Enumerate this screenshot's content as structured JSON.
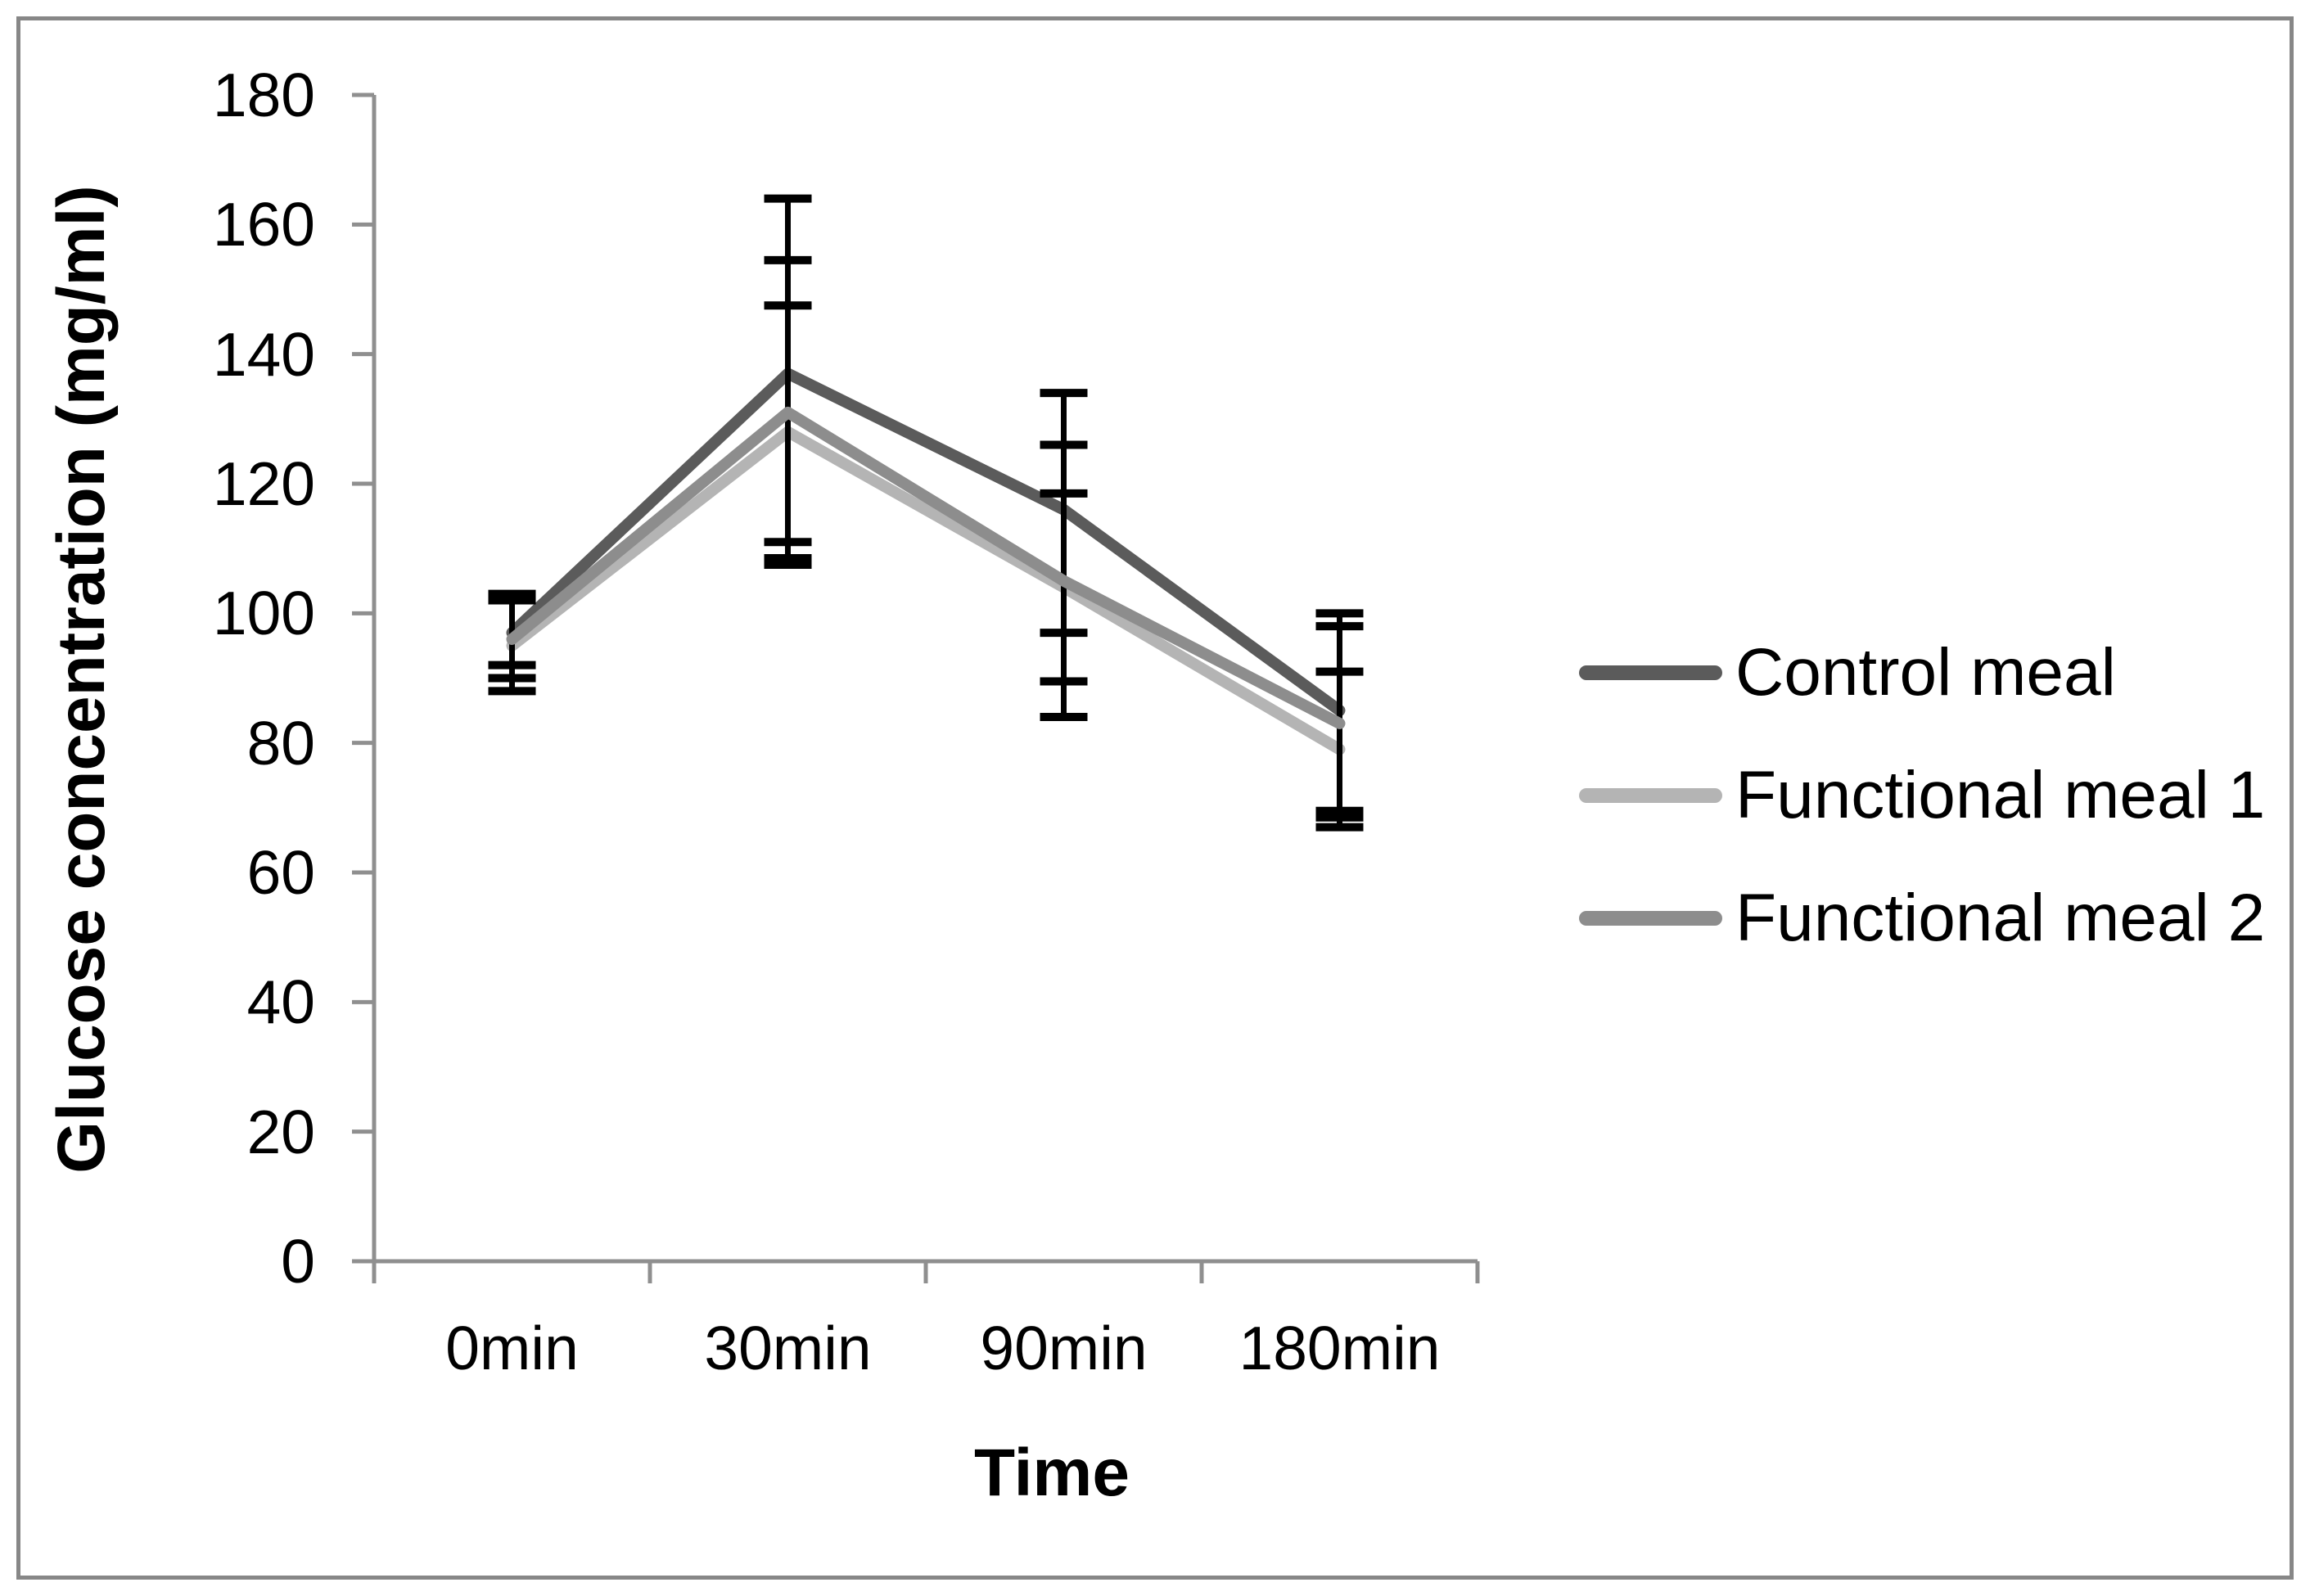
{
  "figure": {
    "border_color": "#878787",
    "background": "#ffffff"
  },
  "chart_data": {
    "type": "line",
    "title": "",
    "ylabel": "Glucose concentration (mg/ml)",
    "xlabel": "Time",
    "categories": [
      "0min",
      "30min",
      "90min",
      "180min"
    ],
    "ylim": [
      0,
      180
    ],
    "yticks": [
      0,
      20,
      40,
      60,
      80,
      100,
      120,
      140,
      160,
      180
    ],
    "grid": false,
    "legend_position": "right-middle",
    "axis_color": "#8f8f8f",
    "error_bar_color": "#000000",
    "series": [
      {
        "name": "Control meal",
        "color": "#5b5b5b",
        "values": [
          97,
          137,
          116,
          85
        ],
        "error_low": [
          92,
          111,
          97,
          69.5
        ],
        "error_high": [
          103,
          164,
          134,
          100
        ]
      },
      {
        "name": "Functional meal 1",
        "color": "#b4b4b4",
        "values": [
          95,
          128,
          104,
          79
        ],
        "error_low": [
          88,
          107.5,
          89.5,
          67
        ],
        "error_high": [
          102,
          147.5,
          118.5,
          91
        ]
      },
      {
        "name": "Functional meal 2",
        "color": "#8d8d8d",
        "values": [
          96,
          131,
          105,
          83
        ],
        "error_low": [
          90,
          108.5,
          84,
          68.5
        ],
        "error_high": [
          102.5,
          154.5,
          126,
          98
        ]
      }
    ]
  }
}
